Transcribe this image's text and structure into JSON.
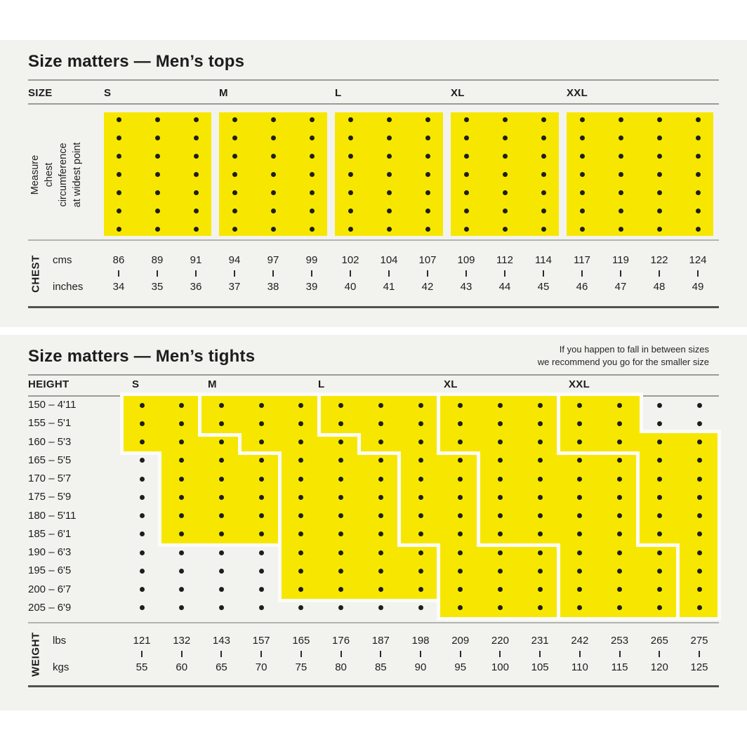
{
  "colors": {
    "page_bg": "#ffffff",
    "section_bg": "#f2f2ef",
    "yellow": "#f7e700",
    "dot": "#1e1e1e",
    "text": "#1d1d1d",
    "rule_light": "#9b9b98",
    "rule_mid": "#b3b3af",
    "rule_dark": "#52524d",
    "separator_white": "#fbfbf8"
  },
  "tops": {
    "title": "Size matters — Men’s tops",
    "size_col_header": "SIZE",
    "sizes": [
      "S",
      "M",
      "L",
      "XL",
      "XXL"
    ],
    "size_column_spans": {
      "S": [
        1,
        3
      ],
      "M": [
        4,
        6
      ],
      "L": [
        7,
        9
      ],
      "XL": [
        10,
        12
      ],
      "XXL": [
        13,
        16
      ]
    },
    "measure_note_lines": [
      "Measure",
      "chest",
      "circumference",
      "at widest point"
    ],
    "group_label": "CHEST",
    "units": [
      {
        "label": "cms",
        "values": [
          "86",
          "89",
          "91",
          "94",
          "97",
          "99",
          "102",
          "104",
          "107",
          "109",
          "112",
          "114",
          "117",
          "119",
          "122",
          "124"
        ]
      },
      {
        "label": "inches",
        "values": [
          "34",
          "35",
          "36",
          "37",
          "38",
          "39",
          "40",
          "41",
          "42",
          "43",
          "44",
          "45",
          "46",
          "47",
          "48",
          "49"
        ]
      }
    ]
  },
  "tights": {
    "title": "Size matters — Men’s tights",
    "note_lines": [
      "If you happen to fall in between sizes",
      "we recommend you go for the smaller size"
    ],
    "height_col_header": "HEIGHT",
    "sizes": [
      "S",
      "M",
      "L",
      "XL",
      "XXL"
    ],
    "heights": [
      "150 – 4'11",
      "155 – 5'1",
      "160 – 5'3",
      "165 – 5'5",
      "170 – 5'7",
      "175 – 5'9",
      "180 – 5'11",
      "185 – 6'1",
      "190 – 6'3",
      "195 – 6'5",
      "200 – 6'7",
      "205 – 6'9"
    ],
    "group_label": "WEIGHT",
    "units": [
      {
        "label": "lbs",
        "values": [
          "121",
          "132",
          "143",
          "157",
          "165",
          "176",
          "187",
          "198",
          "209",
          "220",
          "231",
          "242",
          "253",
          "265",
          "275"
        ]
      },
      {
        "label": "kgs",
        "values": [
          "55",
          "60",
          "65",
          "70",
          "75",
          "80",
          "85",
          "90",
          "95",
          "100",
          "105",
          "110",
          "115",
          "120",
          "125"
        ]
      }
    ],
    "regions": {
      "S": [
        {
          "rows": [
            1,
            2
          ],
          "cols": [
            1,
            2
          ]
        },
        {
          "rows": [
            3,
            3
          ],
          "cols": [
            1,
            3
          ]
        },
        {
          "rows": [
            4,
            8
          ],
          "cols": [
            2,
            4
          ]
        }
      ],
      "M": [
        {
          "rows": [
            1,
            2
          ],
          "cols": [
            3,
            5
          ]
        },
        {
          "rows": [
            3,
            3
          ],
          "cols": [
            4,
            6
          ]
        },
        {
          "rows": [
            4,
            8
          ],
          "cols": [
            5,
            7
          ]
        },
        {
          "rows": [
            9,
            11
          ],
          "cols": [
            5,
            8
          ]
        }
      ],
      "L": [
        {
          "rows": [
            1,
            2
          ],
          "cols": [
            6,
            8
          ]
        },
        {
          "rows": [
            3,
            3
          ],
          "cols": [
            7,
            8
          ]
        },
        {
          "rows": [
            4,
            8
          ],
          "cols": [
            8,
            9
          ]
        },
        {
          "rows": [
            9,
            12
          ],
          "cols": [
            9,
            11
          ]
        }
      ],
      "XL": [
        {
          "rows": [
            1,
            3
          ],
          "cols": [
            9,
            11
          ]
        },
        {
          "rows": [
            4,
            8
          ],
          "cols": [
            10,
            13
          ]
        },
        {
          "rows": [
            9,
            12
          ],
          "cols": [
            12,
            14
          ]
        }
      ],
      "XXL": [
        {
          "rows": [
            1,
            2
          ],
          "cols": [
            12,
            13
          ]
        },
        {
          "rows": [
            3,
            3
          ],
          "cols": [
            12,
            15
          ]
        },
        {
          "rows": [
            4,
            8
          ],
          "cols": [
            14,
            15
          ]
        },
        {
          "rows": [
            9,
            12
          ],
          "cols": [
            15,
            15
          ]
        }
      ]
    }
  },
  "chart_data": [
    {
      "type": "table",
      "title": "Size matters — Men’s tops",
      "x_axis": {
        "label": "CHEST",
        "cms": [
          86,
          89,
          91,
          94,
          97,
          99,
          102,
          104,
          107,
          109,
          112,
          114,
          117,
          119,
          122,
          124
        ],
        "inches": [
          34,
          35,
          36,
          37,
          38,
          39,
          40,
          41,
          42,
          43,
          44,
          45,
          46,
          47,
          48,
          49
        ]
      },
      "annotation": "Measure chest circumference at widest point",
      "series": [
        {
          "name": "S",
          "chest_cms": [
            86,
            91
          ],
          "chest_inches": [
            34,
            36
          ]
        },
        {
          "name": "M",
          "chest_cms": [
            94,
            99
          ],
          "chest_inches": [
            37,
            39
          ]
        },
        {
          "name": "L",
          "chest_cms": [
            102,
            107
          ],
          "chest_inches": [
            40,
            42
          ]
        },
        {
          "name": "XL",
          "chest_cms": [
            109,
            114
          ],
          "chest_inches": [
            43,
            45
          ]
        },
        {
          "name": "XXL",
          "chest_cms": [
            117,
            124
          ],
          "chest_inches": [
            46,
            49
          ]
        }
      ]
    },
    {
      "type": "heatmap",
      "title": "Size matters — Men’s tights",
      "annotation": "If you happen to fall in between sizes we recommend you go for the smaller size",
      "y_axis": {
        "label": "HEIGHT",
        "heights_cm": [
          150,
          155,
          160,
          165,
          170,
          175,
          180,
          185,
          190,
          195,
          200,
          205
        ]
      },
      "x_axis": {
        "label": "WEIGHT",
        "lbs": [
          121,
          132,
          143,
          157,
          165,
          176,
          187,
          198,
          209,
          220,
          231,
          242,
          253,
          265,
          275
        ],
        "kgs": [
          55,
          60,
          65,
          70,
          75,
          80,
          85,
          90,
          95,
          100,
          105,
          110,
          115,
          120,
          125
        ]
      },
      "series": [
        {
          "name": "S",
          "steps": [
            {
              "heights_cm": [
                150,
                155
              ],
              "weight_kgs": [
                55,
                60
              ]
            },
            {
              "heights_cm": [
                160,
                160
              ],
              "weight_kgs": [
                55,
                65
              ]
            },
            {
              "heights_cm": [
                165,
                185
              ],
              "weight_kgs": [
                60,
                70
              ]
            }
          ]
        },
        {
          "name": "M",
          "steps": [
            {
              "heights_cm": [
                150,
                155
              ],
              "weight_kgs": [
                65,
                75
              ]
            },
            {
              "heights_cm": [
                160,
                160
              ],
              "weight_kgs": [
                70,
                80
              ]
            },
            {
              "heights_cm": [
                165,
                185
              ],
              "weight_kgs": [
                75,
                85
              ]
            },
            {
              "heights_cm": [
                190,
                200
              ],
              "weight_kgs": [
                75,
                90
              ]
            }
          ]
        },
        {
          "name": "L",
          "steps": [
            {
              "heights_cm": [
                150,
                155
              ],
              "weight_kgs": [
                80,
                90
              ]
            },
            {
              "heights_cm": [
                160,
                160
              ],
              "weight_kgs": [
                85,
                90
              ]
            },
            {
              "heights_cm": [
                165,
                185
              ],
              "weight_kgs": [
                90,
                95
              ]
            },
            {
              "heights_cm": [
                190,
                205
              ],
              "weight_kgs": [
                95,
                105
              ]
            }
          ]
        },
        {
          "name": "XL",
          "steps": [
            {
              "heights_cm": [
                150,
                160
              ],
              "weight_kgs": [
                95,
                105
              ]
            },
            {
              "heights_cm": [
                165,
                185
              ],
              "weight_kgs": [
                100,
                115
              ]
            },
            {
              "heights_cm": [
                190,
                205
              ],
              "weight_kgs": [
                110,
                120
              ]
            }
          ]
        },
        {
          "name": "XXL",
          "steps": [
            {
              "heights_cm": [
                150,
                155
              ],
              "weight_kgs": [
                110,
                115
              ]
            },
            {
              "heights_cm": [
                160,
                160
              ],
              "weight_kgs": [
                110,
                125
              ]
            },
            {
              "heights_cm": [
                165,
                185
              ],
              "weight_kgs": [
                120,
                125
              ]
            },
            {
              "heights_cm": [
                190,
                205
              ],
              "weight_kgs": [
                125,
                125
              ]
            }
          ]
        }
      ]
    }
  ]
}
